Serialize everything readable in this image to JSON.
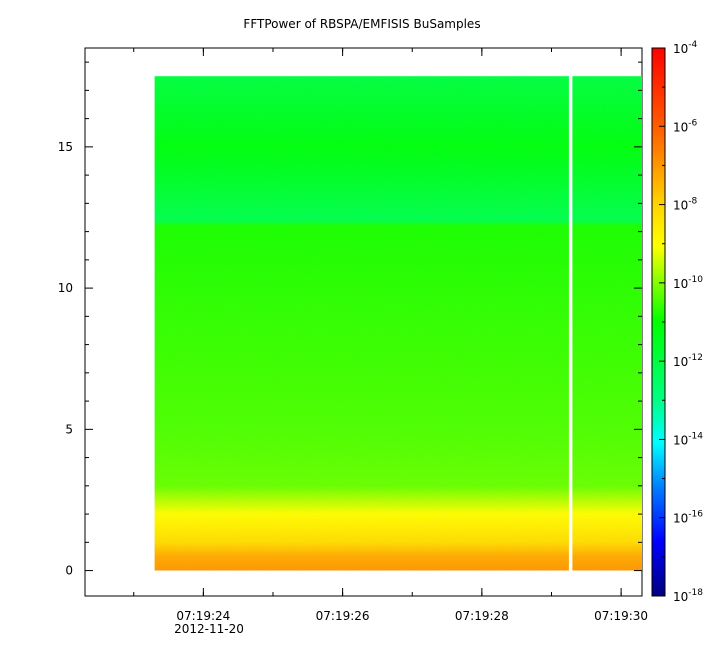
{
  "chart_data": {
    "type": "heatmap",
    "title": "FFTPower of RBSPA/EMFISIS  BuSamples",
    "xlabel": "",
    "ylabel": "",
    "x_date_label": "2012-11-20",
    "x_ticks": [
      "07:19:24",
      "07:19:26",
      "07:19:28",
      "07:19:30"
    ],
    "x_range": [
      "07:19:22.3",
      "07:19:30.3"
    ],
    "data_x_range": [
      "07:19:23.3",
      "07:19:30.3"
    ],
    "data_gap": [
      "07:19:29.25",
      "07:19:29.3"
    ],
    "y_ticks": [
      0,
      5,
      10,
      15
    ],
    "ylim": [
      -0.9,
      18.5
    ],
    "data_y_range": [
      0,
      17.5
    ],
    "z_scale": "log",
    "z_range": [
      1e-18,
      0.0001
    ],
    "colorbar": {
      "position": "right",
      "tick_base": "10",
      "tick_exponents": [
        "-4",
        "-6",
        "-8",
        "-10",
        "-12",
        "-14",
        "-16",
        "-18"
      ],
      "colors": [
        "#ff0000",
        "#ffa000",
        "#ffff00",
        "#00ff00",
        "#00ffff",
        "#0000ff",
        "#00007f"
      ]
    },
    "spectrum_profile": [
      {
        "y": 0.0,
        "log_power": -7.0
      },
      {
        "y": 0.5,
        "log_power": -7.3
      },
      {
        "y": 1.0,
        "log_power": -8.2
      },
      {
        "y": 2.0,
        "log_power": -9.0
      },
      {
        "y": 3.0,
        "log_power": -10.2
      },
      {
        "y": 5.0,
        "log_power": -10.4
      },
      {
        "y": 12.2,
        "log_power": -10.8
      },
      {
        "y": 12.4,
        "log_power": -12.2
      },
      {
        "y": 15.0,
        "log_power": -11.2
      },
      {
        "y": 17.5,
        "log_power": -12.0
      }
    ],
    "grid": false,
    "legend": "none"
  }
}
